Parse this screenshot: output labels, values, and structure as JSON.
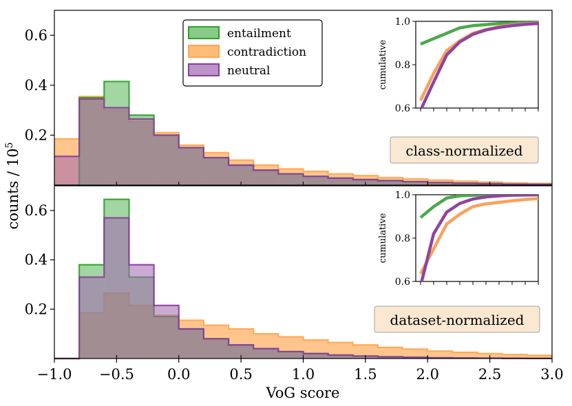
{
  "chart_data": {
    "type": "histogram",
    "xlabel": "VoG score",
    "ylabel": "counts / 10",
    "ylabel_exponent": "5",
    "xlim": [
      -1.0,
      3.0
    ],
    "x_ticks": [
      -1.0,
      -0.5,
      0.0,
      0.5,
      1.0,
      1.5,
      2.0,
      2.5,
      3.0
    ],
    "x_tick_labels": [
      "−1.0",
      "−0.5",
      "0.0",
      "0.5",
      "1.0",
      "1.5",
      "2.0",
      "2.5",
      "3.0"
    ],
    "bin_edges": [
      -1.0,
      -0.8,
      -0.6,
      -0.4,
      -0.2,
      0.0,
      0.2,
      0.4,
      0.6,
      0.8,
      1.0,
      1.2,
      1.4,
      1.6,
      1.8,
      2.0,
      2.2,
      2.4,
      2.6,
      2.8,
      3.0
    ],
    "series_style": [
      {
        "name": "entailment",
        "fill": "#55b555",
        "line": "#2ca02c",
        "fill_opacity": 0.55
      },
      {
        "name": "contradiction",
        "fill": "#ffbb78",
        "line": "#ffa54f",
        "fill_opacity": 0.85
      },
      {
        "name": "neutral",
        "fill": "#a066b0",
        "line": "#8a3d9a",
        "fill_opacity": 0.55
      }
    ],
    "legend": [
      "entailment",
      "contradiction",
      "neutral"
    ],
    "panels": [
      {
        "label": "class-normalized",
        "ylim": [
          0,
          0.7
        ],
        "y_ticks": [
          0.2,
          0.4,
          0.6
        ],
        "y_tick_labels": [
          "0.2",
          "0.4",
          "0.6"
        ],
        "series": [
          {
            "name": "entailment",
            "values": [
              0.0,
              0.35,
              0.415,
              0.28,
              0.2,
              0.15,
              0.11,
              0.08,
              0.06,
              0.045,
              0.035,
              0.028,
              0.022,
              0.018,
              0.014,
              0.01,
              0.008,
              0.006,
              0.004,
              0.003
            ]
          },
          {
            "name": "contradiction",
            "values": [
              0.185,
              0.355,
              0.3,
              0.255,
              0.21,
              0.16,
              0.13,
              0.1,
              0.08,
              0.065,
              0.055,
              0.045,
              0.038,
              0.03,
              0.025,
              0.02,
              0.016,
              0.012,
              0.009,
              0.007
            ]
          },
          {
            "name": "neutral",
            "values": [
              0.115,
              0.345,
              0.31,
              0.265,
              0.2,
              0.15,
              0.11,
              0.08,
              0.06,
              0.045,
              0.035,
              0.028,
              0.022,
              0.018,
              0.014,
              0.01,
              0.008,
              0.006,
              0.004,
              0.003
            ]
          }
        ],
        "inset": {
          "ylabel": "cumulative",
          "ylim": [
            0.6,
            1.0
          ],
          "y_ticks": [
            0.6,
            0.8,
            1.0
          ],
          "y_tick_labels": [
            "0.6",
            "0.8",
            "1.0"
          ],
          "x": [
            0.0,
            1.0,
            2.0,
            3.0,
            4.0,
            5.0,
            6.0,
            7.0,
            8.0,
            9.0
          ],
          "series": [
            {
              "name": "entailment",
              "values": [
                0.895,
                0.92,
                0.945,
                0.97,
                0.98,
                0.985,
                0.99,
                0.992,
                0.994,
                0.995
              ]
            },
            {
              "name": "contradiction",
              "values": [
                0.635,
                0.76,
                0.865,
                0.91,
                0.945,
                0.962,
                0.975,
                0.983,
                0.988,
                0.992
              ]
            },
            {
              "name": "neutral",
              "values": [
                0.59,
                0.72,
                0.845,
                0.905,
                0.94,
                0.96,
                0.972,
                0.98,
                0.986,
                0.99
              ]
            }
          ]
        }
      },
      {
        "label": "dataset-normalized",
        "ylim": [
          0,
          0.7
        ],
        "y_ticks": [
          0.2,
          0.4,
          0.6
        ],
        "y_tick_labels": [
          "0.2",
          "0.4",
          "0.6"
        ],
        "series": [
          {
            "name": "entailment",
            "values": [
              0.0,
              0.38,
              0.645,
              0.33,
              0.17,
              0.12,
              0.08,
              0.055,
              0.04,
              0.028,
              0.02,
              0.014,
              0.01,
              0.007,
              0.005,
              0.003,
              0.002,
              0.0015,
              0.001,
              0.0005
            ]
          },
          {
            "name": "contradiction",
            "values": [
              0.0,
              0.185,
              0.265,
              0.215,
              0.175,
              0.155,
              0.135,
              0.12,
              0.1,
              0.088,
              0.075,
              0.065,
              0.055,
              0.045,
              0.038,
              0.03,
              0.025,
              0.02,
              0.016,
              0.013
            ]
          },
          {
            "name": "neutral",
            "values": [
              0.0,
              0.33,
              0.57,
              0.38,
              0.215,
              0.12,
              0.08,
              0.055,
              0.04,
              0.028,
              0.02,
              0.014,
              0.01,
              0.007,
              0.005,
              0.003,
              0.002,
              0.0015,
              0.001,
              0.0005
            ]
          }
        ],
        "inset": {
          "ylabel": "cumulative",
          "ylim": [
            0.6,
            1.0
          ],
          "y_ticks": [
            0.6,
            0.8,
            1.0
          ],
          "y_tick_labels": [
            "0.6",
            "0.8",
            "1.0"
          ],
          "x": [
            0.0,
            1.0,
            2.0,
            3.0,
            4.0,
            5.0,
            6.0,
            7.0,
            8.0,
            9.0
          ],
          "series": [
            {
              "name": "entailment",
              "values": [
                0.895,
                0.945,
                0.985,
                0.995,
                0.998,
                0.999,
                1.0,
                1.0,
                1.0,
                1.0
              ]
            },
            {
              "name": "contradiction",
              "values": [
                0.635,
                0.75,
                0.865,
                0.91,
                0.945,
                0.958,
                0.965,
                0.972,
                0.978,
                0.982
              ]
            },
            {
              "name": "neutral",
              "values": [
                0.58,
                0.82,
                0.92,
                0.96,
                0.98,
                0.99,
                0.995,
                0.998,
                0.999,
                1.0
              ]
            }
          ]
        }
      }
    ]
  }
}
